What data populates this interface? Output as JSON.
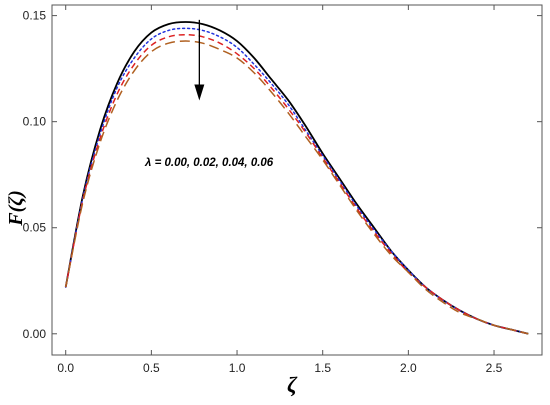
{
  "chart_data": {
    "type": "line",
    "xlabel": "ζ",
    "ylabel": "F(ζ)",
    "xlim": [
      -0.08,
      2.78
    ],
    "ylim": [
      -0.01,
      0.155
    ],
    "xticks": [
      0.0,
      0.5,
      1.0,
      1.5,
      2.0,
      2.5
    ],
    "xtick_labels": [
      "0.0",
      "0.5",
      "1.0",
      "1.5",
      "2.0",
      "2.5"
    ],
    "yticks": [
      0.0,
      0.05,
      0.1,
      0.15
    ],
    "ytick_labels": [
      "0.00",
      "0.05",
      "0.10",
      "0.15"
    ],
    "grid": false,
    "annotation": "λ = 0.00, 0.02, 0.04, 0.06",
    "arrow": {
      "x": 0.78,
      "from_y": 0.148,
      "to_y": 0.11
    },
    "series": [
      {
        "color": "#000000",
        "dash": "solid",
        "x": [
          0.0,
          0.1,
          0.2,
          0.3,
          0.4,
          0.5,
          0.6,
          0.7,
          0.8,
          0.9,
          1.0,
          1.1,
          1.2,
          1.3,
          1.4,
          1.5,
          1.6,
          1.7,
          1.8,
          1.9,
          2.0,
          2.1,
          2.2,
          2.3,
          2.4,
          2.5,
          2.6,
          2.7
        ],
        "y": [
          0.022,
          0.065,
          0.096,
          0.118,
          0.133,
          0.142,
          0.146,
          0.147,
          0.146,
          0.143,
          0.138,
          0.13,
          0.12,
          0.11,
          0.098,
          0.085,
          0.073,
          0.061,
          0.05,
          0.039,
          0.03,
          0.022,
          0.016,
          0.011,
          0.007,
          0.004,
          0.002,
          0.0
        ]
      },
      {
        "color": "#2233dd",
        "dash": "dotted",
        "x": [
          0.0,
          0.1,
          0.2,
          0.3,
          0.4,
          0.5,
          0.6,
          0.7,
          0.8,
          0.9,
          1.0,
          1.1,
          1.2,
          1.3,
          1.4,
          1.5,
          1.6,
          1.7,
          1.8,
          1.9,
          2.0,
          2.1,
          2.2,
          2.3,
          2.4,
          2.5,
          2.6,
          2.7
        ],
        "y": [
          0.022,
          0.064,
          0.094,
          0.116,
          0.13,
          0.139,
          0.143,
          0.144,
          0.143,
          0.14,
          0.135,
          0.127,
          0.118,
          0.108,
          0.096,
          0.084,
          0.072,
          0.06,
          0.049,
          0.039,
          0.03,
          0.022,
          0.016,
          0.011,
          0.007,
          0.004,
          0.002,
          0.0
        ]
      },
      {
        "color": "#dd2222",
        "dash": "dashed",
        "x": [
          0.0,
          0.1,
          0.2,
          0.3,
          0.4,
          0.5,
          0.6,
          0.7,
          0.8,
          0.9,
          1.0,
          1.1,
          1.2,
          1.3,
          1.4,
          1.5,
          1.6,
          1.7,
          1.8,
          1.9,
          2.0,
          2.1,
          2.2,
          2.3,
          2.4,
          2.5,
          2.6,
          2.7
        ],
        "y": [
          0.022,
          0.063,
          0.092,
          0.113,
          0.127,
          0.136,
          0.14,
          0.141,
          0.14,
          0.137,
          0.132,
          0.125,
          0.116,
          0.106,
          0.095,
          0.083,
          0.071,
          0.059,
          0.048,
          0.038,
          0.029,
          0.022,
          0.016,
          0.011,
          0.007,
          0.004,
          0.002,
          0.0
        ]
      },
      {
        "color": "#b06020",
        "dash": "longdash",
        "x": [
          0.0,
          0.1,
          0.2,
          0.3,
          0.4,
          0.5,
          0.6,
          0.7,
          0.8,
          0.9,
          1.0,
          1.1,
          1.2,
          1.3,
          1.4,
          1.5,
          1.6,
          1.7,
          1.8,
          1.9,
          2.0,
          2.1,
          2.2,
          2.3,
          2.4,
          2.5,
          2.6,
          2.7
        ],
        "y": [
          0.022,
          0.062,
          0.09,
          0.11,
          0.124,
          0.133,
          0.137,
          0.138,
          0.137,
          0.134,
          0.13,
          0.123,
          0.114,
          0.104,
          0.093,
          0.082,
          0.07,
          0.058,
          0.047,
          0.037,
          0.029,
          0.021,
          0.015,
          0.01,
          0.007,
          0.004,
          0.002,
          0.0
        ]
      }
    ]
  }
}
